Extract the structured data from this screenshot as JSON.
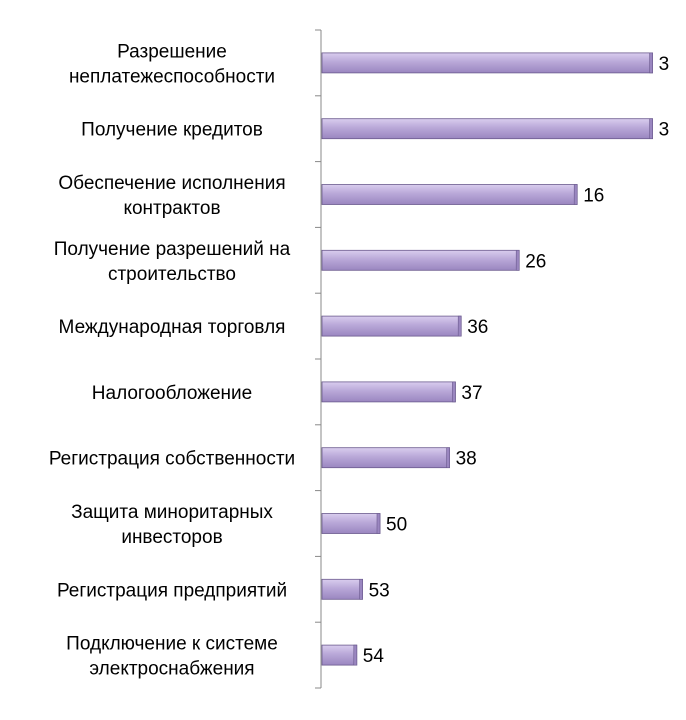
{
  "chart_data": {
    "type": "bar",
    "orientation": "horizontal",
    "categories": [
      [
        "Разрешение",
        "неплатежеспособности"
      ],
      [
        "Получение кредитов"
      ],
      [
        "Обеспечение исполнения",
        "контрактов"
      ],
      [
        "Получение разрешений на",
        "строительство"
      ],
      [
        "Международная торговля"
      ],
      [
        "Налогообложение"
      ],
      [
        "Регистрация собственности"
      ],
      [
        "Защита миноритарных",
        "инвесторов"
      ],
      [
        "Регистрация предприятий"
      ],
      [
        "Подключение к системе",
        "электроснабжения"
      ]
    ],
    "values": [
      3,
      3,
      16,
      26,
      36,
      37,
      38,
      50,
      53,
      54
    ],
    "value_labels": [
      "3",
      "3",
      "16",
      "26",
      "36",
      "37",
      "38",
      "50",
      "53",
      "54"
    ],
    "bar_extent_rule": "bar length decreases as the value increases (bars are drawn as 60 minus the value)",
    "xlim": [
      0,
      60
    ],
    "grid": false,
    "legend": "none",
    "colors": {
      "bar_fill": "#b9a8d8",
      "bar_highlight": "#d9cdee",
      "bar_shadow": "#9a86c0",
      "bar_border": "#6b5a8e",
      "axis": "#888888"
    }
  }
}
